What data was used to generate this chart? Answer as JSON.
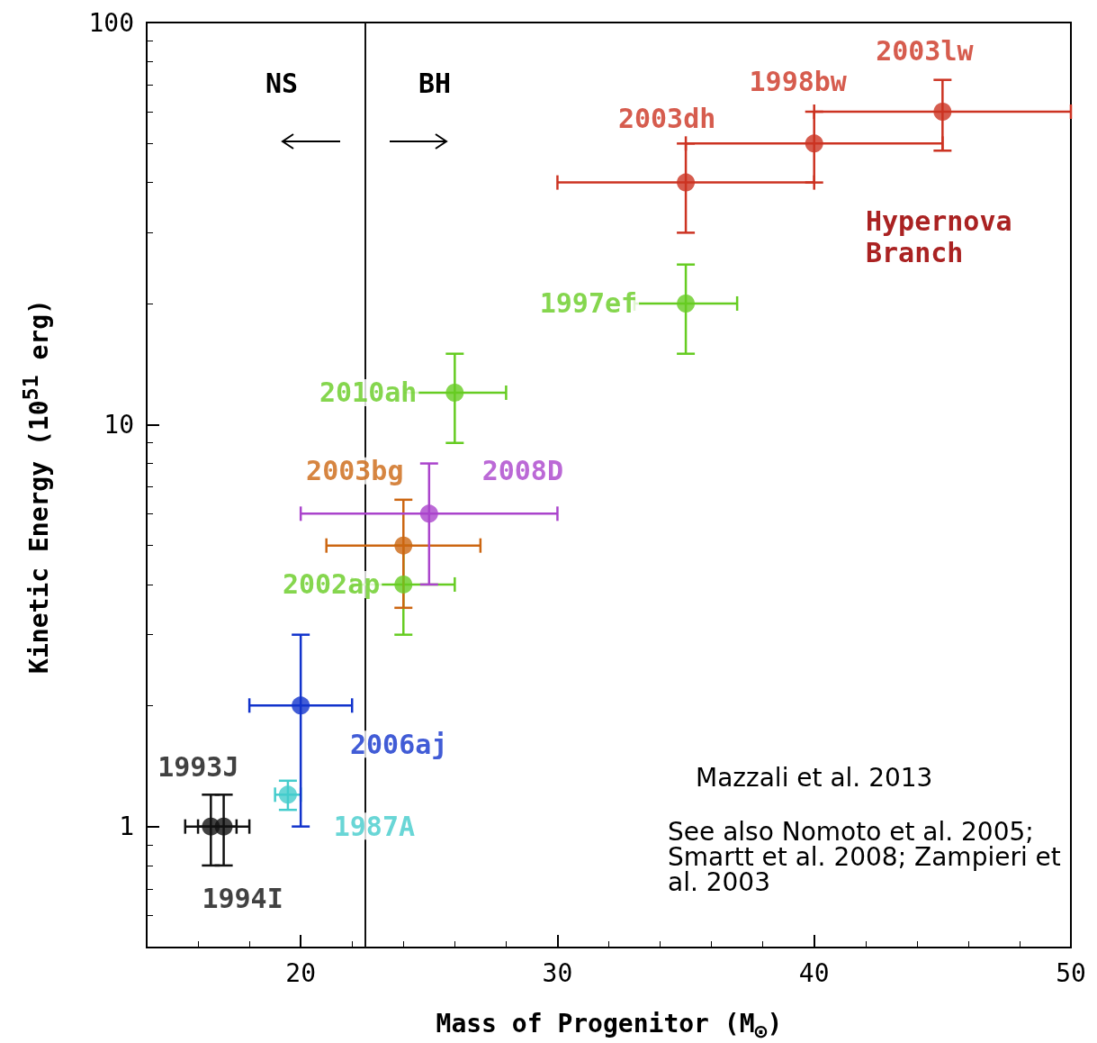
{
  "chart_data": {
    "type": "scatter",
    "xlabel": "Mass of Progenitor (M$_{⊙}$)",
    "ylabel": "Kinetic Energy (10$^{51}$ erg)",
    "xlim": [
      14,
      50
    ],
    "xticks": [
      20,
      30,
      40,
      50
    ],
    "ylim": [
      0.5,
      100
    ],
    "yticks": [
      1,
      10,
      100
    ],
    "log": "y",
    "grid": false,
    "legend": false,
    "marker": "circle",
    "series": [
      {
        "name": "1993J",
        "color": "#111111",
        "x": [
          16.5
        ],
        "values": [
          1
        ],
        "xerrors": [
          [
            15.5,
            17.5
          ]
        ],
        "errors": [
          [
            0.8,
            1.2
          ]
        ]
      },
      {
        "name": "1994I",
        "color": "#111111",
        "x": [
          17
        ],
        "values": [
          1
        ],
        "xerrors": [
          [
            16,
            18
          ]
        ],
        "errors": [
          [
            0.8,
            1.2
          ]
        ]
      },
      {
        "name": "1987A",
        "color": "#44cccc",
        "x": [
          19.5
        ],
        "values": [
          1.2
        ],
        "xerrors": [
          [
            19,
            20
          ]
        ],
        "errors": [
          [
            1.1,
            1.3
          ]
        ]
      },
      {
        "name": "2006aj",
        "color": "#1133cc",
        "x": [
          20
        ],
        "values": [
          2
        ],
        "xerrors": [
          [
            18,
            22
          ]
        ],
        "errors": [
          [
            1,
            3
          ]
        ]
      },
      {
        "name": "2002ap",
        "color": "#66cc22",
        "x": [
          24
        ],
        "values": [
          4
        ],
        "xerrors": [
          [
            22,
            26
          ]
        ],
        "errors": [
          [
            3,
            5
          ]
        ]
      },
      {
        "name": "2003bg",
        "color": "#cc6611",
        "x": [
          24
        ],
        "values": [
          5
        ],
        "xerrors": [
          [
            21,
            27
          ]
        ],
        "errors": [
          [
            3.5,
            6.5
          ]
        ]
      },
      {
        "name": "2008D",
        "color": "#aa44cc",
        "x": [
          25
        ],
        "values": [
          6
        ],
        "xerrors": [
          [
            20,
            30
          ]
        ],
        "errors": [
          [
            4,
            8
          ]
        ]
      },
      {
        "name": "2010ah",
        "color": "#66cc22",
        "x": [
          26
        ],
        "values": [
          12
        ],
        "xerrors": [
          [
            24,
            28
          ]
        ],
        "errors": [
          [
            9,
            15
          ]
        ]
      },
      {
        "name": "1997ef",
        "color": "#66cc22",
        "x": [
          35
        ],
        "values": [
          20
        ],
        "xerrors": [
          [
            33,
            37
          ]
        ],
        "errors": [
          [
            15,
            25
          ]
        ]
      },
      {
        "name": "2003dh",
        "color": "#cc3322",
        "x": [
          35
        ],
        "values": [
          40
        ],
        "xerrors": [
          [
            30,
            40
          ]
        ],
        "errors": [
          [
            30,
            50
          ]
        ]
      },
      {
        "name": "1998bw",
        "color": "#cc3322",
        "x": [
          40
        ],
        "values": [
          50
        ],
        "xerrors": [
          [
            35,
            45
          ]
        ],
        "errors": [
          [
            40,
            60
          ]
        ]
      },
      {
        "name": "2003lw",
        "color": "#cc3322",
        "x": [
          45
        ],
        "values": [
          60
        ],
        "xerrors": [
          [
            40,
            50
          ]
        ],
        "errors": [
          [
            48,
            72
          ]
        ]
      }
    ],
    "ref_lines": [
      {
        "axis": "x",
        "value": 22.5,
        "label": null,
        "color": "#111111"
      }
    ],
    "annotations": [
      "NS",
      "BH",
      "Hypernova Branch",
      "Mazzali et al. 2013",
      "See also Nomoto et al. 2005; Smartt et al. 2008; Zampieri et al. 2003"
    ]
  }
}
